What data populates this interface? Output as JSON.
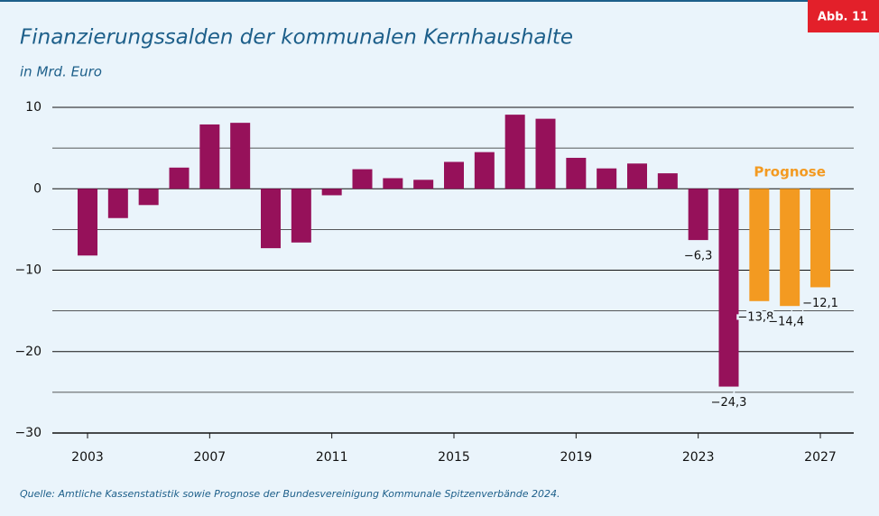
{
  "badge": "Abb. 11",
  "chart_data": {
    "type": "bar",
    "title": "Finanzierungssalden der kommunalen Kernhaushalte",
    "subtitle": "in Mrd. Euro",
    "source": "Quelle: Amtliche Kassenstatistik sowie Prognose der Bundesvereinigung Kommunale Spitzenverbände 2024.",
    "categories": [
      "2003",
      null,
      null,
      null,
      "2007",
      null,
      null,
      null,
      "2011",
      null,
      null,
      null,
      "2015",
      null,
      null,
      null,
      "2019",
      null,
      null,
      null,
      "2023",
      null,
      null,
      null,
      "2027"
    ],
    "series": [
      {
        "color": "#96115a",
        "values": [
          -8.2,
          -3.6,
          -2.0,
          2.6,
          7.9,
          8.1,
          -7.3,
          -6.6,
          -0.8,
          2.4,
          1.3,
          1.1,
          3.3,
          4.5,
          9.1,
          8.6,
          3.8,
          2.5,
          3.1,
          1.9,
          -6.3,
          -24.3,
          null,
          null,
          null
        ],
        "value_labels": [
          null,
          null,
          null,
          null,
          null,
          null,
          null,
          null,
          null,
          null,
          null,
          null,
          null,
          null,
          null,
          null,
          null,
          null,
          null,
          null,
          "−6,3",
          "−24,3",
          null,
          null,
          null
        ]
      },
      {
        "name": "Prognose",
        "color": "#f39a21",
        "values": [
          null,
          null,
          null,
          null,
          null,
          null,
          null,
          null,
          null,
          null,
          null,
          null,
          null,
          null,
          null,
          null,
          null,
          null,
          null,
          null,
          null,
          null,
          -13.8,
          -14.4,
          -12.1
        ],
        "value_labels": [
          null,
          null,
          null,
          null,
          null,
          null,
          null,
          null,
          null,
          null,
          null,
          null,
          null,
          null,
          null,
          null,
          null,
          null,
          null,
          null,
          null,
          null,
          "−13,8",
          "−14,4",
          "−12,1"
        ]
      }
    ],
    "ylim": [
      -30,
      10
    ],
    "yticks": [
      {
        "value": -30,
        "label": "−30"
      },
      {
        "value": -20,
        "label": "−20"
      },
      {
        "value": -10,
        "label": "−10"
      },
      0,
      10
    ],
    "minor_grid": [
      -25,
      -15,
      -5,
      5
    ],
    "grid": true
  }
}
